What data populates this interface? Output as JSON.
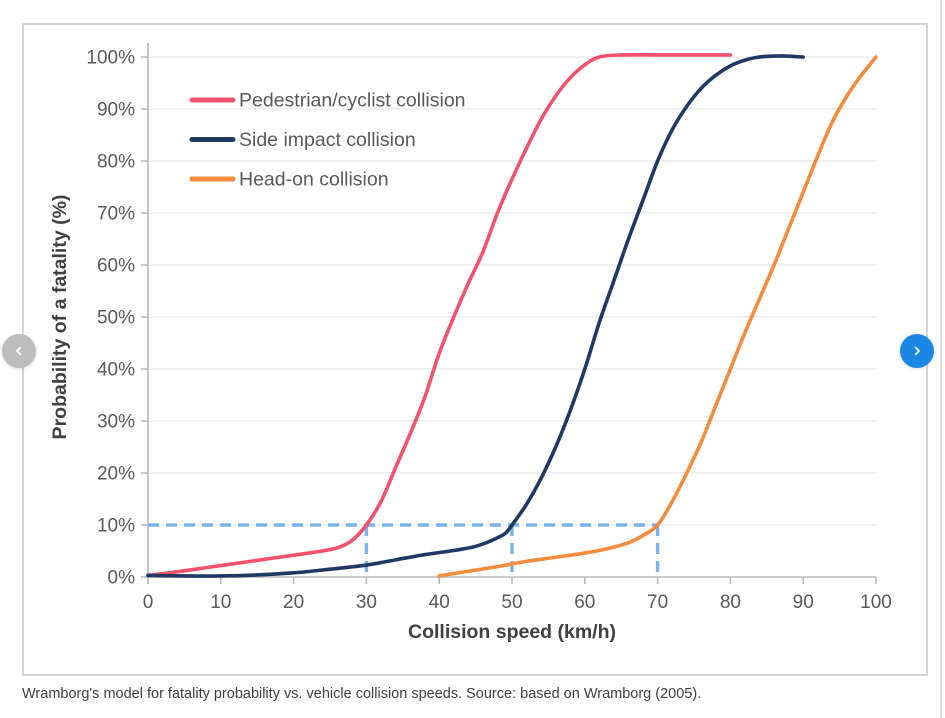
{
  "caption": "Wramborg's model for fatality probability vs. vehicle collision speeds. Source: based on Wramborg (2005).",
  "theme": {
    "card_border": "#d4d4d4",
    "grid_color": "#e6e6e6",
    "axis_color": "#b8b8b8",
    "tick_text_color": "#595959",
    "axis_title_color": "#404040",
    "caption_color": "#3c4043",
    "prev_button_color": "#bdbdbd",
    "next_button_color": "#1b87e5",
    "button_icon_color": "#ffffff"
  },
  "nav": {
    "prev_icon": "chevron-left-icon",
    "next_icon": "chevron-right-icon"
  },
  "chart_data": {
    "type": "line",
    "title": "",
    "xlabel": "Collision speed (km/h)",
    "ylabel": "Probability of a fatality (%)",
    "xlim": [
      0,
      100
    ],
    "ylim": [
      0,
      100
    ],
    "grid": "horizontal",
    "legend_position": "top-left-inside",
    "xtick_values": [
      0,
      10,
      20,
      30,
      40,
      50,
      60,
      70,
      80,
      90,
      100
    ],
    "xtick_labels": [
      "0",
      "10",
      "20",
      "30",
      "40",
      "50",
      "60",
      "70",
      "80",
      "90",
      "100"
    ],
    "ytick_values": [
      0,
      10,
      20,
      30,
      40,
      50,
      60,
      70,
      80,
      90,
      100
    ],
    "ytick_labels": [
      "0%",
      "10%",
      "20%",
      "30%",
      "40%",
      "50%",
      "60%",
      "70%",
      "80%",
      "90%",
      "100%"
    ],
    "series": [
      {
        "name": "Pedestrian/cyclist collision",
        "color": "#f4516c",
        "points": [
          [
            0,
            0.3
          ],
          [
            4,
            1
          ],
          [
            8,
            1.8
          ],
          [
            12,
            2.6
          ],
          [
            16,
            3.4
          ],
          [
            20,
            4.2
          ],
          [
            23,
            4.8
          ],
          [
            26,
            5.6
          ],
          [
            28,
            7
          ],
          [
            30,
            10
          ],
          [
            32,
            14.5
          ],
          [
            34,
            21
          ],
          [
            36,
            27.5
          ],
          [
            38,
            34.5
          ],
          [
            40,
            43
          ],
          [
            42,
            50
          ],
          [
            44,
            56.5
          ],
          [
            46,
            62.5
          ],
          [
            48,
            70
          ],
          [
            50,
            76.5
          ],
          [
            52,
            82.5
          ],
          [
            54,
            88
          ],
          [
            56,
            92.5
          ],
          [
            58,
            96
          ],
          [
            60,
            98.5
          ],
          [
            62,
            100
          ],
          [
            65,
            100.4
          ],
          [
            70,
            100.4
          ],
          [
            75,
            100.4
          ],
          [
            80,
            100.4
          ]
        ]
      },
      {
        "name": "Side impact collision",
        "color": "#1f3864",
        "points": [
          [
            0,
            0.3
          ],
          [
            5,
            0.2
          ],
          [
            10,
            0.2
          ],
          [
            15,
            0.4
          ],
          [
            20,
            0.8
          ],
          [
            25,
            1.5
          ],
          [
            30,
            2.3
          ],
          [
            34,
            3.3
          ],
          [
            38,
            4.3
          ],
          [
            42,
            5.1
          ],
          [
            45,
            5.9
          ],
          [
            47,
            6.9
          ],
          [
            49,
            8.3
          ],
          [
            50,
            10
          ],
          [
            52,
            14
          ],
          [
            54,
            19
          ],
          [
            56,
            25
          ],
          [
            58,
            32
          ],
          [
            60,
            40
          ],
          [
            62,
            49
          ],
          [
            64,
            57
          ],
          [
            66,
            65
          ],
          [
            68,
            72.5
          ],
          [
            70,
            80
          ],
          [
            72,
            86
          ],
          [
            74,
            90.5
          ],
          [
            76,
            94
          ],
          [
            78,
            96.5
          ],
          [
            80,
            98.3
          ],
          [
            82,
            99.4
          ],
          [
            84,
            100
          ],
          [
            87,
            100.2
          ],
          [
            90,
            100
          ]
        ]
      },
      {
        "name": "Head-on collision",
        "color": "#f58b3c",
        "points": [
          [
            40,
            0.2
          ],
          [
            44,
            1.1
          ],
          [
            48,
            2
          ],
          [
            52,
            3
          ],
          [
            56,
            3.8
          ],
          [
            60,
            4.6
          ],
          [
            63,
            5.4
          ],
          [
            66,
            6.6
          ],
          [
            68,
            8
          ],
          [
            70,
            10
          ],
          [
            72,
            14.5
          ],
          [
            74,
            20
          ],
          [
            76,
            26
          ],
          [
            78,
            33
          ],
          [
            80,
            40
          ],
          [
            82,
            47
          ],
          [
            84,
            53.5
          ],
          [
            86,
            60
          ],
          [
            88,
            67
          ],
          [
            90,
            74
          ],
          [
            92,
            81
          ],
          [
            94,
            87.5
          ],
          [
            96,
            92.5
          ],
          [
            98,
            96.5
          ],
          [
            100,
            100
          ]
        ]
      }
    ],
    "reference_lines": {
      "color": "#7ab5ea",
      "style": "dashed",
      "horizontal": [
        {
          "y": 10,
          "x_from": 0,
          "x_to": 70
        }
      ],
      "vertical": [
        {
          "x": 30,
          "y_from": 0,
          "y_to": 10
        },
        {
          "x": 50,
          "y_from": 0,
          "y_to": 10
        },
        {
          "x": 70,
          "y_from": 0,
          "y_to": 10
        }
      ]
    }
  }
}
